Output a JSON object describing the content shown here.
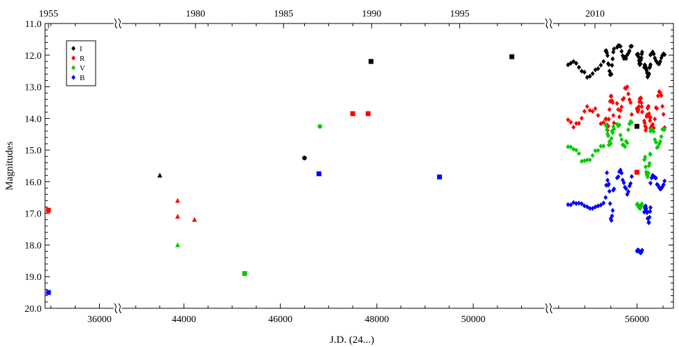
{
  "chart_data": {
    "type": "scatter",
    "xlabel": "J.D. (24...)",
    "ylabel": "Magnitudes",
    "ylim": [
      20.0,
      11.0
    ],
    "y_inverted": true,
    "grid": false,
    "legend_position": "top-left",
    "bottom_ticks": [
      "36000",
      "44000",
      "46000",
      "48000",
      "50000",
      "56000"
    ],
    "top_ticks": [
      "1955",
      "1980",
      "1985",
      "1990",
      "1995",
      "2010"
    ],
    "y_ticks": [
      "11.0",
      "12.0",
      "13.0",
      "14.0",
      "15.0",
      "16.0",
      "17.0",
      "18.0",
      "19.0",
      "20.0"
    ],
    "axis_segments": [
      {
        "name": "early",
        "xlim": [
          34880,
          36350
        ]
      },
      {
        "name": "main",
        "xlim": [
          42600,
          51450
        ]
      },
      {
        "name": "recent",
        "xlim": [
          54350,
          56700
        ]
      }
    ],
    "series": [
      {
        "name": "I",
        "color": "#000000"
      },
      {
        "name": "R",
        "color": "#ff0000"
      },
      {
        "name": "V",
        "color": "#00cc00"
      },
      {
        "name": "B",
        "color": "#0000ff"
      }
    ],
    "points": [
      {
        "series": "R",
        "x": 34950,
        "y": 16.9,
        "marker": "square"
      },
      {
        "series": "B",
        "x": 34950,
        "y": 19.5,
        "marker": "square"
      },
      {
        "series": "I",
        "x": 43500,
        "y": 15.8,
        "marker": "triangle"
      },
      {
        "series": "R",
        "x": 43870,
        "y": 16.6,
        "marker": "triangle"
      },
      {
        "series": "R",
        "x": 43870,
        "y": 17.1,
        "marker": "triangle"
      },
      {
        "series": "R",
        "x": 44220,
        "y": 17.2,
        "marker": "triangle"
      },
      {
        "series": "V",
        "x": 43870,
        "y": 18.0,
        "marker": "triangle"
      },
      {
        "series": "V",
        "x": 45260,
        "y": 18.9,
        "marker": "square"
      },
      {
        "series": "I",
        "x": 46500,
        "y": 15.25,
        "marker": "circle"
      },
      {
        "series": "B",
        "x": 46800,
        "y": 15.75,
        "marker": "square"
      },
      {
        "series": "V",
        "x": 46820,
        "y": 14.25,
        "marker": "circle"
      },
      {
        "series": "R",
        "x": 47500,
        "y": 13.85,
        "marker": "square"
      },
      {
        "series": "R",
        "x": 47820,
        "y": 13.85,
        "marker": "square"
      },
      {
        "series": "I",
        "x": 47880,
        "y": 12.2,
        "marker": "square"
      },
      {
        "series": "B",
        "x": 49300,
        "y": 15.85,
        "marker": "square"
      },
      {
        "series": "I",
        "x": 50800,
        "y": 12.05,
        "marker": "square"
      },
      {
        "series": "I",
        "x": 56000,
        "y": 14.25,
        "marker": "square"
      },
      {
        "series": "R",
        "x": 56000,
        "y": 15.7,
        "marker": "square"
      }
    ],
    "recent_monitoring": {
      "marker": "diamond",
      "x_range": [
        54680,
        56550
      ],
      "segments": [
        {
          "start": 54680,
          "end": 55360,
          "I": [
            12.2,
            12.7
          ],
          "R": [
            13.6,
            14.3
          ],
          "V": [
            14.85,
            15.4
          ],
          "B": [
            16.65,
            16.85
          ]
        },
        {
          "start": 55400,
          "end": 55560,
          "I": [
            11.8,
            12.7
          ],
          "R": [
            13.1,
            14.4
          ],
          "V": [
            14.2,
            14.9
          ],
          "B": [
            15.7,
            17.25
          ]
        },
        {
          "start": 55620,
          "end": 55900,
          "I": [
            11.7,
            12.15
          ],
          "R": [
            13.0,
            13.95
          ],
          "V": [
            14.1,
            15.0
          ],
          "B": [
            15.6,
            16.4
          ]
        },
        {
          "start": 56000,
          "end": 56100,
          "I": [
            11.9,
            12.3
          ],
          "R": [
            13.3,
            13.8
          ],
          "V": [
            16.7,
            16.85
          ],
          "B": [
            18.15,
            18.25
          ]
        },
        {
          "start": 56140,
          "end": 56260,
          "I": [
            12.3,
            12.7
          ],
          "R": [
            13.6,
            14.4
          ],
          "V": [
            15.1,
            16.0
          ],
          "B": [
            16.7,
            17.3
          ]
        },
        {
          "start": 56260,
          "end": 56530,
          "I": [
            11.9,
            12.3
          ],
          "R": [
            13.15,
            14.3
          ],
          "V": [
            14.25,
            15.0
          ],
          "B": [
            15.8,
            16.3
          ]
        }
      ]
    }
  }
}
